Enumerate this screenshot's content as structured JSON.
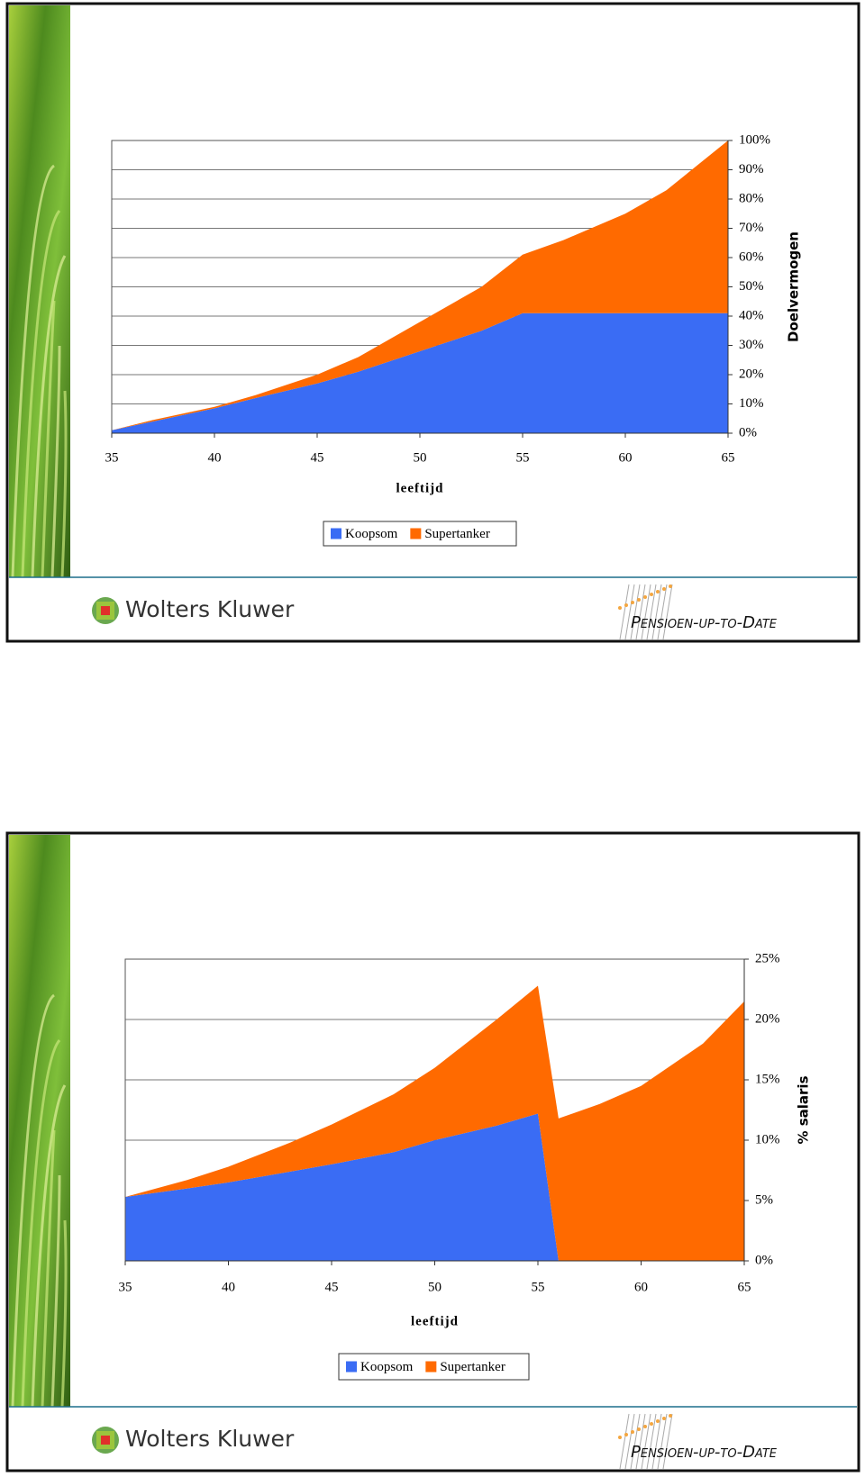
{
  "chart_data": [
    {
      "type": "area",
      "stacked": true,
      "x": [
        35,
        37,
        40,
        42,
        45,
        47,
        50,
        53,
        55,
        57,
        60,
        62,
        65
      ],
      "series": [
        {
          "name": "Koopsom",
          "color": "#3a6cf4",
          "values": [
            1,
            4,
            8.5,
            12,
            17,
            21,
            28,
            35,
            41,
            41,
            41,
            41,
            41
          ]
        },
        {
          "name": "Supertanker",
          "color": "#ff6a00",
          "values": [
            0,
            0.5,
            0.5,
            1,
            3,
            5,
            10,
            15,
            20,
            25,
            34,
            42,
            59
          ]
        }
      ],
      "xlabel": "leeftijd",
      "ylabel": "Doelvermogen",
      "xlim": [
        35,
        65
      ],
      "xticks": [
        35,
        40,
        45,
        50,
        55,
        60,
        65
      ],
      "ylim": [
        0,
        100
      ],
      "yticks": [
        {
          "value": 0,
          "label": "0%"
        },
        {
          "value": 10,
          "label": "10%"
        },
        {
          "value": 20,
          "label": "20%"
        },
        {
          "value": 30,
          "label": "30%"
        },
        {
          "value": 40,
          "label": "40%"
        },
        {
          "value": 50,
          "label": "50%"
        },
        {
          "value": 60,
          "label": "60%"
        },
        {
          "value": 70,
          "label": "70%"
        },
        {
          "value": 80,
          "label": "80%"
        },
        {
          "value": 90,
          "label": "90%"
        },
        {
          "value": 100,
          "label": "100%"
        }
      ],
      "grid": true,
      "legend": "bottom"
    },
    {
      "type": "area",
      "stacked": true,
      "x": [
        35,
        38,
        40,
        43,
        45,
        48,
        50,
        53,
        55,
        56,
        58,
        60,
        63,
        65
      ],
      "series": [
        {
          "name": "Koopsom",
          "color": "#3a6cf4",
          "values": [
            5.3,
            6,
            6.5,
            7.4,
            8,
            9,
            10,
            11.2,
            12.2,
            0,
            0,
            0,
            0,
            0
          ]
        },
        {
          "name": "Supertanker",
          "color": "#ff6a00",
          "values": [
            0,
            0.7,
            1.3,
            2.4,
            3.3,
            4.8,
            6,
            8.8,
            10.6,
            11.8,
            13,
            14.5,
            18,
            21.5
          ]
        }
      ],
      "xlabel": "leeftijd",
      "ylabel": "% salaris",
      "xlim": [
        35,
        65
      ],
      "xticks": [
        35,
        40,
        45,
        50,
        55,
        60,
        65
      ],
      "ylim": [
        0,
        25
      ],
      "yticks": [
        {
          "value": 0,
          "label": "0%"
        },
        {
          "value": 5,
          "label": "5%"
        },
        {
          "value": 10,
          "label": "10%"
        },
        {
          "value": 15,
          "label": "15%"
        },
        {
          "value": 20,
          "label": "20%"
        },
        {
          "value": 25,
          "label": "25%"
        }
      ],
      "grid": true,
      "legend": "bottom"
    }
  ],
  "branding": {
    "company": "Wolters Kluwer",
    "product": "Pensioen-up-to-Date"
  }
}
